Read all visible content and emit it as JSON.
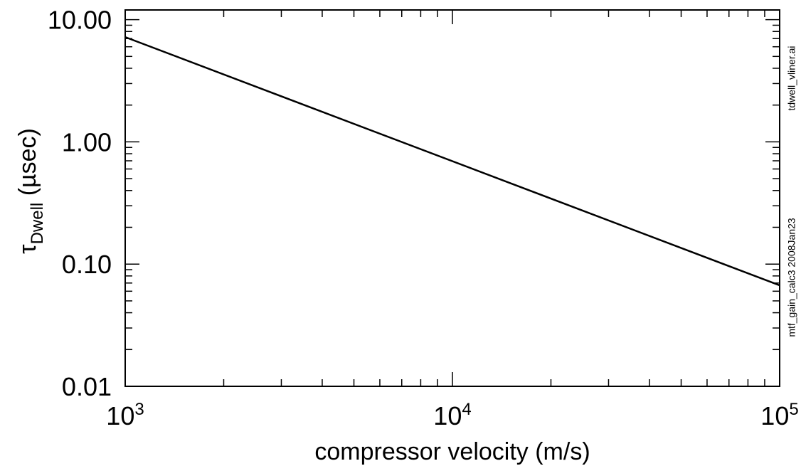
{
  "chart_data": {
    "type": "line",
    "xlabel": "compressor velocity (m/s)",
    "ylabel_symbol": "τ",
    "ylabel_sub": "Dwell",
    "ylabel_unit": " (µsec)",
    "x_scale": "log",
    "y_scale": "log",
    "xlim": [
      1000,
      100000
    ],
    "ylim": [
      0.01,
      12
    ],
    "x_ticks": [
      {
        "value": 1000,
        "base": "10",
        "exp": "3"
      },
      {
        "value": 10000,
        "base": "10",
        "exp": "4"
      },
      {
        "value": 100000,
        "base": "10",
        "exp": "5"
      }
    ],
    "y_ticks": [
      {
        "value": 0.01,
        "label": "0.01"
      },
      {
        "value": 0.1,
        "label": "0.10"
      },
      {
        "value": 1,
        "label": "1.00"
      },
      {
        "value": 10,
        "label": "10.00"
      }
    ],
    "grid": false,
    "series": [
      {
        "x": [
          1000,
          100000
        ],
        "y": [
          7.2,
          0.067
        ]
      }
    ]
  },
  "side_notes": {
    "filename": "tdwell_vliner.ai",
    "source": "mtf_gain_calc3  2008Jan23"
  }
}
